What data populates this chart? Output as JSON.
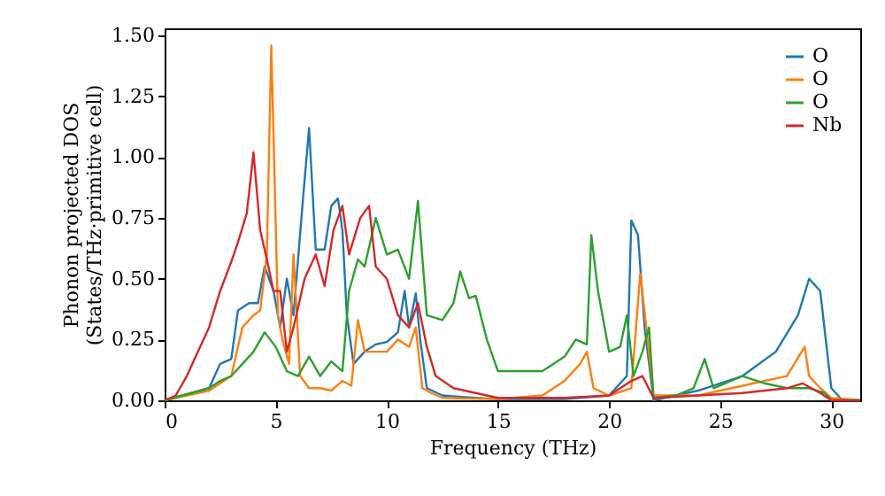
{
  "chart_data": {
    "type": "line",
    "xlabel": "Frequency (THz)",
    "ylabel": "Phonon projected DOS\n(States/THz·primitive cell)",
    "xlim": [
      0,
      31.3
    ],
    "xticks": [
      0,
      5,
      10,
      15,
      20,
      25,
      30
    ],
    "ylim": [
      0,
      1.53
    ],
    "yticks": [
      {
        "value": 0,
        "label": "0.00"
      },
      {
        "value": 0.25,
        "label": "0.25"
      },
      {
        "value": 0.5,
        "label": "0.50"
      },
      {
        "value": 0.75,
        "label": "0.75"
      },
      {
        "value": 1,
        "label": "1.00"
      },
      {
        "value": 1.25,
        "label": "1.25"
      },
      {
        "value": 1.5,
        "label": "1.50"
      }
    ],
    "grid": false,
    "legend": "top right",
    "marker": "none",
    "line_style": "solid",
    "series": [
      {
        "name": "O",
        "color": "#1f77b4",
        "x": [
          0,
          2,
          2.5,
          3,
          3.3,
          3.8,
          4.2,
          4.5,
          4.9,
          5.2,
          5.5,
          5.8,
          6.2,
          6.5,
          6.8,
          7.2,
          7.5,
          7.8,
          8,
          8.2,
          8.5,
          9,
          9.5,
          10,
          10.5,
          10.8,
          11,
          11.3,
          11.5,
          11.8,
          12.5,
          14,
          15,
          18,
          20,
          20.8,
          21,
          21.3,
          21.6,
          22,
          24,
          26,
          27.5,
          28.5,
          29,
          29.5,
          30,
          30.5,
          31.3
        ],
        "values": [
          0,
          0.05,
          0.15,
          0.17,
          0.37,
          0.4,
          0.4,
          0.55,
          0.45,
          0.3,
          0.5,
          0.35,
          0.8,
          1.12,
          0.62,
          0.62,
          0.8,
          0.83,
          0.7,
          0.35,
          0.15,
          0.2,
          0.23,
          0.24,
          0.28,
          0.45,
          0.3,
          0.44,
          0.25,
          0.05,
          0.02,
          0.01,
          0.005,
          0.005,
          0.02,
          0.1,
          0.74,
          0.68,
          0.3,
          0,
          0.04,
          0.1,
          0.2,
          0.35,
          0.5,
          0.45,
          0.05,
          0,
          0
        ]
      },
      {
        "name": "O",
        "color": "#ff7f0e",
        "x": [
          0,
          2,
          3,
          3.5,
          4,
          4.3,
          4.6,
          4.8,
          5.1,
          5.3,
          5.6,
          5.8,
          6.1,
          6.5,
          7,
          7.5,
          8,
          8.4,
          8.7,
          9,
          9.5,
          10,
          10.5,
          11,
          11.3,
          11.6,
          12,
          12.5,
          15,
          17,
          18,
          18.7,
          19,
          19.3,
          20,
          21,
          21.4,
          21.7,
          22,
          24,
          26,
          28,
          28.8,
          29,
          29.5,
          30,
          31.3
        ],
        "values": [
          0,
          0.04,
          0.1,
          0.3,
          0.35,
          0.37,
          0.6,
          1.46,
          0.35,
          0.25,
          0.15,
          0.6,
          0.1,
          0.05,
          0.05,
          0.04,
          0.08,
          0.06,
          0.33,
          0.2,
          0.2,
          0.2,
          0.25,
          0.22,
          0.3,
          0.05,
          0.03,
          0.01,
          0.005,
          0.02,
          0.08,
          0.15,
          0.2,
          0.05,
          0.02,
          0.05,
          0.52,
          0.28,
          0.02,
          0.02,
          0.06,
          0.1,
          0.22,
          0.1,
          0.05,
          0.01,
          0
        ]
      },
      {
        "name": "O",
        "color": "#2ca02c",
        "x": [
          0,
          2,
          2.5,
          3,
          3.5,
          4,
          4.5,
          5,
          5.5,
          6,
          6.5,
          7,
          7.5,
          8,
          8.3,
          8.7,
          9,
          9.5,
          10,
          10.5,
          11,
          11.4,
          11.8,
          12.5,
          13,
          13.3,
          13.7,
          14,
          14.5,
          15,
          17,
          18,
          18.5,
          19,
          19.2,
          19.5,
          20,
          20.5,
          20.8,
          21.1,
          21.5,
          21.8,
          22,
          23,
          23.8,
          24.3,
          24.7,
          26,
          27,
          28,
          29,
          29.7,
          30,
          31.3
        ],
        "values": [
          0,
          0.05,
          0.08,
          0.1,
          0.15,
          0.2,
          0.28,
          0.22,
          0.12,
          0.1,
          0.18,
          0.1,
          0.16,
          0.12,
          0.45,
          0.58,
          0.55,
          0.75,
          0.6,
          0.62,
          0.5,
          0.82,
          0.35,
          0.33,
          0.4,
          0.53,
          0.42,
          0.43,
          0.25,
          0.12,
          0.12,
          0.18,
          0.25,
          0.23,
          0.68,
          0.45,
          0.2,
          0.22,
          0.35,
          0.1,
          0.2,
          0.3,
          0.01,
          0.02,
          0.05,
          0.17,
          0.05,
          0.1,
          0.07,
          0.05,
          0.05,
          0.03,
          0,
          0
        ]
      },
      {
        "name": "Nb",
        "color": "#d62728",
        "x": [
          0,
          0.5,
          1,
          1.5,
          2,
          2.5,
          3,
          3.3,
          3.7,
          4,
          4.3,
          4.6,
          4.9,
          5.2,
          5.5,
          5.8,
          6.3,
          6.8,
          7.2,
          7.6,
          8,
          8.3,
          8.8,
          9.2,
          9.5,
          10,
          10.5,
          11,
          11.4,
          11.8,
          12.2,
          13,
          14,
          15,
          18,
          20,
          21,
          21.5,
          22,
          24,
          26,
          28,
          28.7,
          29.5,
          30,
          31.3
        ],
        "values": [
          0,
          0.02,
          0.1,
          0.2,
          0.3,
          0.45,
          0.57,
          0.65,
          0.77,
          1.02,
          0.7,
          0.58,
          0.45,
          0.45,
          0.2,
          0.3,
          0.5,
          0.6,
          0.47,
          0.7,
          0.8,
          0.6,
          0.75,
          0.8,
          0.55,
          0.5,
          0.35,
          0.3,
          0.4,
          0.22,
          0.1,
          0.05,
          0.03,
          0.01,
          0.01,
          0.02,
          0.08,
          0.1,
          0.01,
          0.02,
          0.03,
          0.05,
          0.07,
          0.03,
          0,
          0
        ]
      }
    ]
  }
}
